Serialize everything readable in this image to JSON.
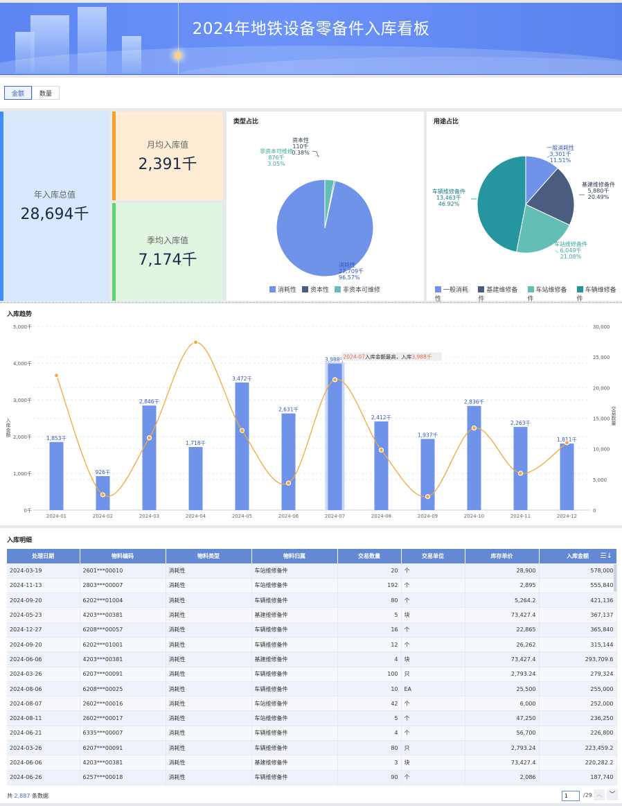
{
  "header": {
    "title": "2024年地铁设备零备件入库看板"
  },
  "toolbar": {
    "tabs": [
      {
        "label": "金额",
        "active": true
      },
      {
        "label": "数量",
        "active": false
      }
    ]
  },
  "kpis": {
    "annual": {
      "label": "年入库总值",
      "value": "28,694千",
      "color": "#3f8cff"
    },
    "monthly": {
      "label": "月均入库值",
      "value": "2,391千",
      "color": "#f5a02a"
    },
    "quarterly": {
      "label": "季均入库值",
      "value": "7,174千",
      "color": "#5fd66a"
    }
  },
  "type_pie": {
    "title": "类型占比",
    "slices": [
      {
        "name": "消耗性",
        "value": 27709,
        "value_label": "27,709千",
        "pct": "96.57%",
        "color": "#6f93e8"
      },
      {
        "name": "资本性",
        "value": 110,
        "value_label": "110千",
        "pct": "0.38%",
        "color": "#4a5d80"
      },
      {
        "name": "非资本可维修",
        "value": 876,
        "value_label": "876千",
        "pct": "3.05%",
        "color": "#63bfb5"
      }
    ],
    "legend": [
      "消耗性",
      "资本性",
      "非资本可维修"
    ]
  },
  "use_pie": {
    "title": "用途占比",
    "slices": [
      {
        "name": "一般消耗性",
        "value": 3301,
        "value_label": "3,301千",
        "pct": "11.51%",
        "color": "#6f93e8"
      },
      {
        "name": "基建维修备件",
        "value": 5880,
        "value_label": "5,880千",
        "pct": "20.49%",
        "color": "#4a5d80"
      },
      {
        "name": "车站维修备件",
        "value": 6049,
        "value_label": "6,049千",
        "pct": "21.08%",
        "color": "#63bfb5"
      },
      {
        "name": "车辆维修备件",
        "value": 13463,
        "value_label": "13,463千",
        "pct": "46.92%",
        "color": "#2596a0"
      }
    ],
    "legend": [
      "一般消耗性",
      "基建维修备件",
      "车站维修备件",
      "车辆维修备件"
    ]
  },
  "chart_data": {
    "type": "bar",
    "title": "入库趋势",
    "categories": [
      "2024-01",
      "2024-02",
      "2024-03",
      "2024-04",
      "2024-05",
      "2024-06",
      "2024-07",
      "2024-08",
      "2024-09",
      "2024-10",
      "2024-11",
      "2024-12"
    ],
    "series": [
      {
        "name": "入库金额",
        "type": "bar",
        "axis": "left",
        "values": [
          1853,
          926,
          2846,
          1718,
          3472,
          2631,
          3988,
          2412,
          1937,
          2836,
          2263,
          1811
        ],
        "labels": [
          "1,853千",
          "926千",
          "2,846千",
          "1,718千",
          "3,472千",
          "2,631千",
          "3,988千",
          "2,412千",
          "1,937千",
          "2,836千",
          "2,263千",
          "1,811千"
        ],
        "color": "#6f93e8"
      },
      {
        "name": "交易数量",
        "type": "line",
        "axis": "right",
        "smooth": true,
        "values": [
          22000,
          2500,
          11800,
          27400,
          13000,
          4400,
          21300,
          9800,
          2200,
          13400,
          6000,
          11000
        ],
        "color": "#f3a838"
      }
    ],
    "ylabel": "入库金额",
    "y2label": "交易数量",
    "ylim": [
      0,
      5000
    ],
    "y2lim": [
      0,
      30000
    ],
    "yticks": [
      "0千",
      "1,000千",
      "2,000千",
      "3,000千",
      "4,000千",
      "5,000千"
    ],
    "y2ticks": [
      "0",
      "5,000",
      "10,000",
      "15,000",
      "20,000",
      "25,000",
      "30,000"
    ],
    "highlight_index": 6,
    "annotation": {
      "month": "2024-07",
      "text": "入库金额最高，入库",
      "value": "3,988千"
    },
    "grid": true
  },
  "detail": {
    "title": "入库明细",
    "columns": [
      "处理日期",
      "物料编码",
      "物料类型",
      "物料归属",
      "交易数量",
      "交易单位",
      "库存单价",
      "入库金额"
    ],
    "rows": [
      [
        "2024-03-19",
        "2601***00010",
        "消耗性",
        "车站维修备件",
        "20",
        "个",
        "28,900",
        "578,000"
      ],
      [
        "2024-11-13",
        "2803***00007",
        "消耗性",
        "车站维修备件",
        "192",
        "个",
        "2,895",
        "555,840"
      ],
      [
        "2024-09-20",
        "6202***01004",
        "消耗性",
        "车辆维修备件",
        "80",
        "个",
        "5,264.2",
        "421,136"
      ],
      [
        "2024-05-23",
        "4203***00381",
        "消耗性",
        "基建维修备件",
        "5",
        "块",
        "73,427.4",
        "367,137"
      ],
      [
        "2024-12-27",
        "6208***00057",
        "消耗性",
        "车辆维修备件",
        "16",
        "个",
        "22,865",
        "365,840"
      ],
      [
        "2024-09-20",
        "6202***01001",
        "消耗性",
        "车辆维修备件",
        "12",
        "个",
        "26,262",
        "315,144"
      ],
      [
        "2024-06-06",
        "4203***00381",
        "消耗性",
        "基建维修备件",
        "4",
        "块",
        "73,427.4",
        "293,709.6"
      ],
      [
        "2024-03-26",
        "6207***00091",
        "消耗性",
        "车辆维修备件",
        "100",
        "只",
        "2,793.24",
        "279,324"
      ],
      [
        "2024-08-06",
        "6208***00025",
        "消耗性",
        "车辆维修备件",
        "10",
        "EA",
        "25,500",
        "255,000"
      ],
      [
        "2024-08-07",
        "2602***00016",
        "消耗性",
        "车站维修备件",
        "42",
        "个",
        "6,000",
        "252,000"
      ],
      [
        "2024-08-11",
        "2602***00017",
        "消耗性",
        "车站维修备件",
        "5",
        "个",
        "47,250",
        "236,250"
      ],
      [
        "2024-06-21",
        "6335***00007",
        "消耗性",
        "车辆维修备件",
        "4",
        "个",
        "56,700",
        "226,800"
      ],
      [
        "2024-03-26",
        "6207***00091",
        "消耗性",
        "车辆维修备件",
        "80",
        "只",
        "2,793.24",
        "223,459.2"
      ],
      [
        "2024-06-06",
        "4203***00381",
        "消耗性",
        "基建维修备件",
        "3",
        "块",
        "73,427.4",
        "220,282.2"
      ],
      [
        "2024-06-26",
        "6257***00018",
        "消耗性",
        "车辆维修备件",
        "90",
        "个",
        "2,086",
        "187,740"
      ]
    ],
    "footer": {
      "prefix": "共",
      "count": "2,887",
      "suffix": "条数据",
      "page": "1",
      "total_pages": "/29"
    }
  }
}
